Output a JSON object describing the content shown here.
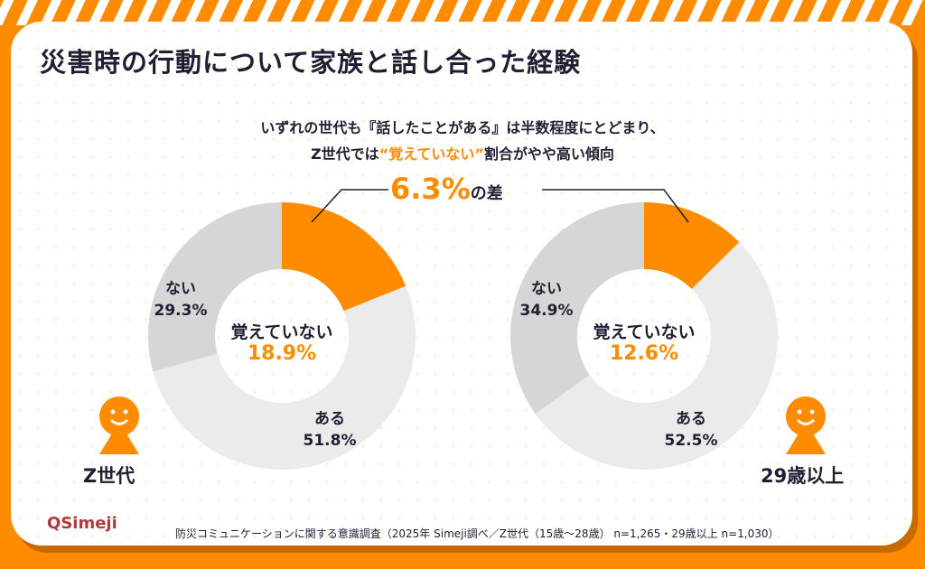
{
  "title": "災害時の行動について家族と話し合った経験",
  "subtitle": {
    "line1": "いずれの世代も『話したことがある』は半数程度にとどまり、",
    "line2_pre": "Z世代では",
    "line2_hl": "“覚えていない”",
    "line2_post": "割合がやや高い傾向"
  },
  "difference": {
    "value": "6.3%",
    "suffix": "の差"
  },
  "colors": {
    "accent": "#ff8c00",
    "aru": "#ebebeb",
    "nai": "#d6d6d6",
    "text": "#1f1f33"
  },
  "chart_data": [
    {
      "type": "pie",
      "group": "Z世代",
      "categories": [
        "覚えていない",
        "ある",
        "ない"
      ],
      "values": [
        18.9,
        51.8,
        29.3
      ],
      "labels": [
        "18.9%",
        "51.8%",
        "29.3%"
      ]
    },
    {
      "type": "pie",
      "group": "29歳以上",
      "categories": [
        "覚えていない",
        "ある",
        "ない"
      ],
      "values": [
        12.6,
        52.5,
        34.9
      ],
      "labels": [
        "12.6%",
        "52.5%",
        "34.9%"
      ]
    }
  ],
  "icons": [
    "person-icon",
    "person-icon"
  ],
  "logo": "Simeji",
  "source": "防災コミュニケーションに関する意識調査（2025年 Simeji調べ／Z世代（15歳〜28歳） n=1,265・29歳以上 n=1,030）"
}
